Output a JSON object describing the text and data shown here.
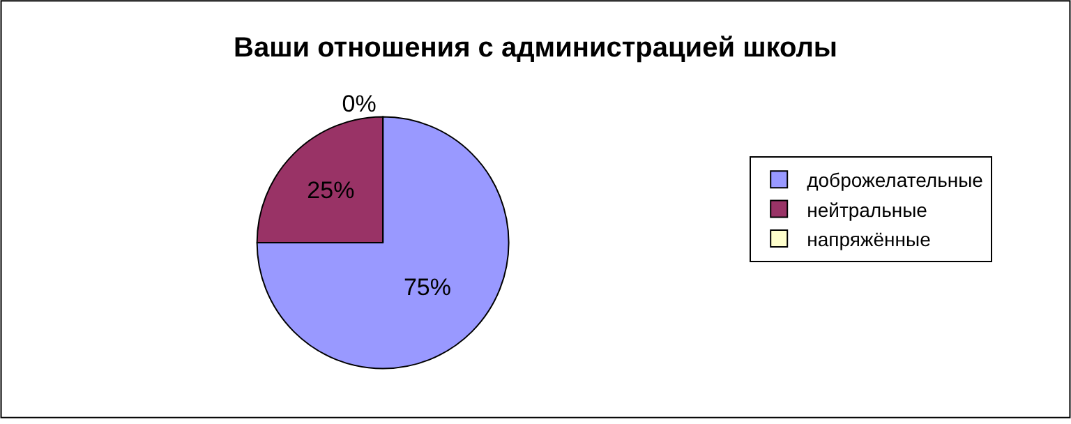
{
  "chart_data": {
    "type": "pie",
    "title": "Ваши отношения с администрацией школы",
    "categories": [
      "доброжелательные",
      "нейтральные",
      "напряжённые"
    ],
    "values": [
      75,
      25,
      0
    ],
    "colors": [
      "#9999ff",
      "#993366",
      "#ffffcc"
    ],
    "value_labels": [
      "75%",
      "25%",
      "0%"
    ],
    "legend": "right"
  }
}
